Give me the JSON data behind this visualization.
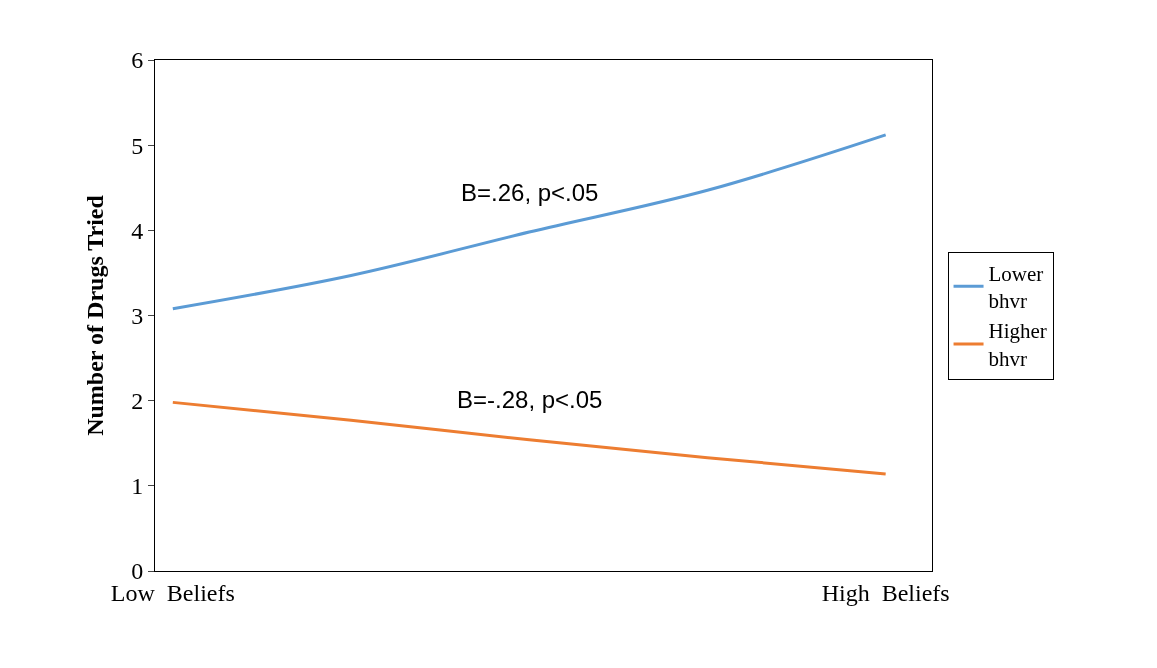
{
  "chart_data": {
    "type": "line",
    "ylabel": "Number of Drugs Tried",
    "categories": [
      "Low  Beliefs",
      null,
      null,
      null,
      "High  Beliefs"
    ],
    "series": [
      {
        "name": "Lower bhvr",
        "color": "#5b9bd5",
        "values": [
          3.08,
          3.47,
          3.98,
          4.47,
          5.12
        ]
      },
      {
        "name": "Higher bhvr",
        "color": "#ed7d31",
        "values": [
          1.98,
          1.77,
          1.54,
          1.33,
          1.14
        ]
      }
    ],
    "ylim": [
      0,
      6
    ],
    "yticks": [
      0,
      1,
      2,
      3,
      4,
      5,
      6
    ],
    "grid": false,
    "legend": "right",
    "marker": "none",
    "line_style": "solid",
    "annotations": [
      "B=.26, p<.05",
      "B=-.28, p<.05"
    ]
  }
}
